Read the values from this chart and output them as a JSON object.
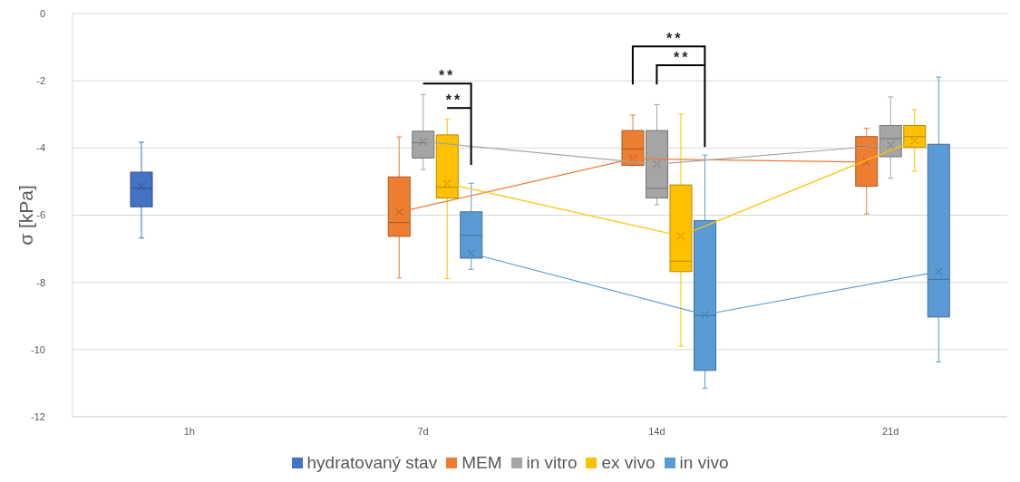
{
  "chart_data": {
    "type": "box",
    "categories": [
      "1h",
      "7d",
      "14d",
      "21d"
    ],
    "ylabel": "σ [kPa]",
    "ylim": [
      -12,
      0
    ],
    "yticks": [
      -12,
      -10,
      -8,
      -6,
      -4,
      -2,
      0
    ],
    "grid": "y",
    "legend": "bottom",
    "annotations": [
      "**",
      "**",
      "**",
      "**"
    ],
    "series": [
      {
        "name": "hydratovaný stav",
        "color": "#4472c4",
        "boxes": [
          {
            "low": -6.68,
            "q1": -5.75,
            "median": -5.2,
            "q3": -4.72,
            "high": -3.83,
            "mean": -5.14
          },
          null,
          null,
          null
        ]
      },
      {
        "name": "MEM",
        "color": "#ed7d31",
        "boxes": [
          null,
          {
            "low": -7.87,
            "q1": -6.63,
            "median": -6.22,
            "q3": -4.86,
            "high": -3.67,
            "mean": -5.91
          },
          {
            "low": -4.52,
            "q1": -4.52,
            "median": -4.03,
            "q3": -3.48,
            "high": -3.02,
            "mean": -4.32
          },
          {
            "low": -5.96,
            "q1": -5.14,
            "median": -3.96,
            "q3": -3.66,
            "high": -3.41,
            "mean": -4.42
          }
        ]
      },
      {
        "color": "#ed7d31",
        "type": "line",
        "values": [
          null,
          -5.91,
          -4.32,
          -4.42
        ]
      },
      {
        "name": "in vitro",
        "color": "#a5a5a5",
        "boxes": [
          null,
          {
            "low": -4.64,
            "q1": -4.3,
            "median": -3.84,
            "q3": -3.5,
            "high": -2.41,
            "mean": -3.81
          },
          {
            "low": -5.69,
            "q1": -5.49,
            "median": -5.2,
            "q3": -3.48,
            "high": -2.71,
            "mean": -4.48
          },
          {
            "low": -4.9,
            "q1": -4.26,
            "median": -3.72,
            "q3": -3.33,
            "high": -2.48,
            "mean": -3.91
          }
        ]
      },
      {
        "color": "#a5a5a5",
        "type": "line",
        "values": [
          null,
          -3.81,
          -4.48,
          -3.91
        ]
      },
      {
        "name": "ex vivo",
        "color": "#ffc000",
        "boxes": [
          null,
          {
            "low": -7.89,
            "q1": -5.49,
            "median": -5.17,
            "q3": -3.61,
            "high": -3.15,
            "mean": -5.06
          },
          {
            "low": -9.9,
            "q1": -7.68,
            "median": -7.37,
            "q3": -5.1,
            "high": -2.99,
            "mean": -6.62
          },
          {
            "low": -4.69,
            "q1": -3.98,
            "median": -3.66,
            "q3": -3.33,
            "high": -2.86,
            "mean": -3.78
          }
        ]
      },
      {
        "color": "#ffc000",
        "type": "line",
        "values": [
          null,
          -5.06,
          -6.62,
          -3.78
        ]
      },
      {
        "name": "in vivo",
        "color": "#5b9bd5",
        "boxes": [
          null,
          {
            "low": -7.61,
            "q1": -7.28,
            "median": -6.6,
            "q3": -5.9,
            "high": -5.05,
            "mean": -7.14
          },
          {
            "low": -11.15,
            "q1": -10.62,
            "median": -8.98,
            "q3": -6.16,
            "high": -4.21,
            "mean": -8.96
          },
          {
            "low": -10.37,
            "q1": -9.03,
            "median": -7.91,
            "q3": -3.89,
            "high": -1.89,
            "mean": -7.68
          }
        ]
      },
      {
        "color": "#5b9bd5",
        "type": "line",
        "values": [
          null,
          -7.14,
          -8.96,
          -7.68
        ]
      }
    ]
  }
}
